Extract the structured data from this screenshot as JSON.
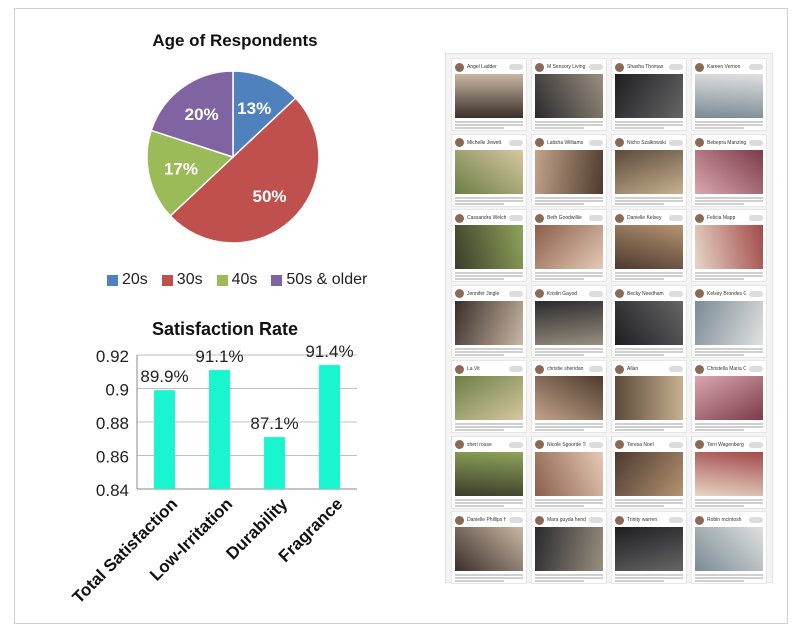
{
  "chart_data": [
    {
      "type": "pie",
      "title": "Age of Respondents",
      "slices": [
        {
          "label": "20s",
          "value": 13,
          "display": "13%",
          "color": "#4f81bd"
        },
        {
          "label": "30s",
          "value": 50,
          "display": "50%",
          "color": "#c0504d"
        },
        {
          "label": "40s",
          "value": 17,
          "display": "17%",
          "color": "#9bbb59"
        },
        {
          "label": "50s & older",
          "value": 20,
          "display": "20%",
          "color": "#8064a2"
        }
      ],
      "legend_position": "bottom"
    },
    {
      "type": "bar",
      "title": "Satisfaction  Rate",
      "categories": [
        "Total Satisfaction",
        "Low-Irritation",
        "Durability",
        "Fragrance"
      ],
      "values": [
        0.899,
        0.911,
        0.871,
        0.914
      ],
      "data_labels": [
        "89.9%",
        "91.1%",
        "87.1%",
        "91.4%"
      ],
      "ylim": [
        0.84,
        0.92
      ],
      "yticks": [
        "0.84",
        "0.86",
        "0.88",
        "0.9",
        "0.92"
      ],
      "ytick_values": [
        0.84,
        0.86,
        0.88,
        0.9,
        0.92
      ],
      "bar_color": "#19f5cf",
      "grid": true,
      "xlabel": "",
      "ylabel": ""
    }
  ],
  "collage": {
    "names": [
      [
        "Angel Ladder",
        "M Sensory Living",
        "Shasha Thomas",
        "Kareen Vernon"
      ],
      [
        "Michelle Jewett",
        "Latisha Williams",
        "Nicho Szalkowski",
        "Bebepra Manzingon"
      ],
      [
        "Cassandra Welch",
        "Beth Goodwillie",
        "Danielle Kelsey",
        "Felicia Mapp"
      ],
      [
        "Jennifer Jingle",
        "Kristin Gayod",
        "Becky Needham",
        "Kelsey Brondes Gonzales"
      ],
      [
        "La Vit",
        "christie sheridan",
        "Allan",
        "Christella Maria Castle"
      ],
      [
        "sheri rouse",
        "Nicole Sgoorde Turner",
        "Teresa Noel",
        "Terri Wagenberg"
      ],
      [
        "Danielle Phillips Hale",
        "Mara guyda henderson",
        "Trinity warren",
        "Robin mcintosh"
      ]
    ]
  }
}
